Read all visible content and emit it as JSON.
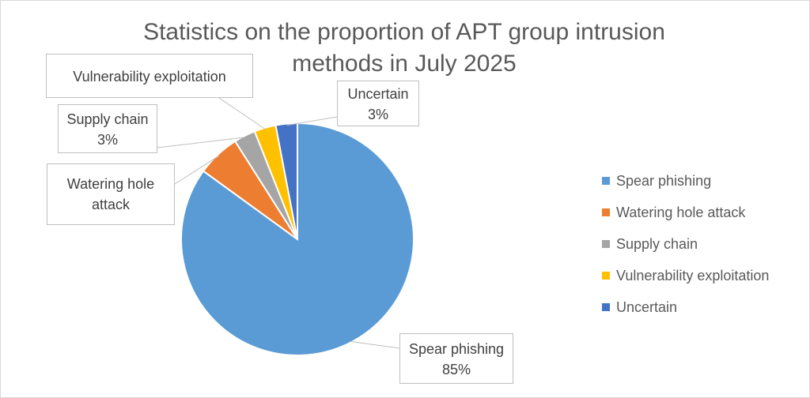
{
  "chart_data": {
    "type": "pie",
    "title_line1": "Statistics on the proportion of APT group intrusion",
    "title_line2": "methods in July 2025",
    "slices": [
      {
        "name": "Spear phishing",
        "value": 85,
        "label": "85%",
        "color": "#5B9BD5"
      },
      {
        "name": "Watering hole attack",
        "value": 6,
        "label": "",
        "color": "#ED7D31"
      },
      {
        "name": "Supply chain",
        "value": 3,
        "label": "3%",
        "color": "#A5A5A5"
      },
      {
        "name": "Vulnerability exploitation",
        "value": 3,
        "label": "",
        "color": "#FFC000"
      },
      {
        "name": "Uncertain",
        "value": 3,
        "label": "3%",
        "color": "#4472C4"
      }
    ],
    "callouts": [
      {
        "line1": "Spear phishing",
        "line2": "85%"
      },
      {
        "line1": "Watering hole",
        "line2": "attack"
      },
      {
        "line1": "Supply chain",
        "line2": "3%"
      },
      {
        "line1": "Vulnerability exploitation",
        "line2": ""
      },
      {
        "line1": "Uncertain",
        "line2": "3%"
      }
    ],
    "legend": [
      "Spear phishing",
      "Watering hole attack",
      "Supply chain",
      "Vulnerability exploitation",
      "Uncertain"
    ],
    "legend_position": "right"
  }
}
